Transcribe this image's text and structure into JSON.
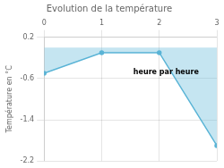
{
  "chart_data": {
    "type": "area",
    "title": "Evolution de la température",
    "y_label": "Température en °C",
    "x": [
      0,
      1,
      2,
      3
    ],
    "values": [
      -0.5,
      -0.1,
      -0.1,
      -1.9
    ],
    "color": "#5ab4d6",
    "xlim": [
      0,
      3
    ],
    "xticks": [
      0,
      1,
      2,
      3
    ],
    "ylim": [
      -2.2,
      0.2
    ],
    "yticks": [
      0.2,
      -0.6,
      -1.4,
      -2.2
    ],
    "grid": true,
    "annotations": [
      {
        "text": "heure par heure",
        "x": 1.55,
        "y": -0.42
      }
    ]
  }
}
